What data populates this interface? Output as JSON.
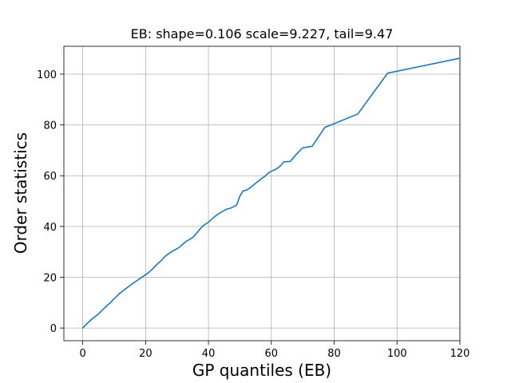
{
  "chart_data": {
    "type": "line",
    "title": "EB: shape=0.106 scale=9.227, tail=9.47",
    "xlabel": "GP quantiles (EB)",
    "ylabel": "Order statistics",
    "xlim": [
      -6,
      120
    ],
    "ylim": [
      -5,
      111
    ],
    "xticks": [
      0,
      20,
      40,
      60,
      80,
      100,
      120
    ],
    "yticks": [
      0,
      20,
      40,
      60,
      80,
      100
    ],
    "grid": true,
    "color": "#1f77b4",
    "series": [
      {
        "x": [
          0,
          1,
          2,
          3,
          4,
          5,
          6,
          7,
          8,
          9,
          10,
          11,
          12,
          13,
          14,
          15,
          16,
          17,
          18,
          19,
          20,
          21,
          22,
          23,
          24,
          25,
          26,
          27,
          28,
          29,
          30,
          31,
          32,
          33,
          34,
          35,
          36,
          37,
          38,
          39,
          40,
          41,
          42,
          43,
          44,
          45,
          46,
          47,
          48,
          49,
          50,
          51,
          52,
          53,
          54,
          55,
          56,
          57,
          58,
          59,
          60,
          61,
          62,
          63,
          64,
          66,
          68,
          70,
          73,
          77,
          87.5,
          97,
          120
        ],
        "y": [
          0,
          1.3,
          2.5,
          3.6,
          4.6,
          5.5,
          6.8,
          8,
          9.1,
          10.3,
          11.6,
          12.7,
          13.9,
          14.8,
          15.8,
          16.7,
          17.6,
          18.5,
          19.3,
          20.2,
          21.0,
          21.9,
          23.0,
          24.3,
          25.5,
          26.6,
          28.0,
          29.0,
          29.8,
          30.6,
          31.2,
          32.1,
          33.2,
          34.2,
          34.9,
          35.7,
          37.0,
          38.5,
          40.0,
          40.9,
          41.7,
          42.8,
          43.9,
          44.8,
          45.6,
          46.3,
          46.9,
          47.2,
          47.8,
          48.5,
          52.0,
          54.0,
          54.3,
          55.0,
          56.0,
          57.0,
          58.0,
          59.0,
          59.8,
          61.0,
          61.8,
          62.3,
          63.0,
          64.0,
          65.5,
          65.6,
          68.5,
          71.0,
          71.6,
          79.0,
          84.3,
          100.4,
          106.3
        ]
      }
    ]
  }
}
